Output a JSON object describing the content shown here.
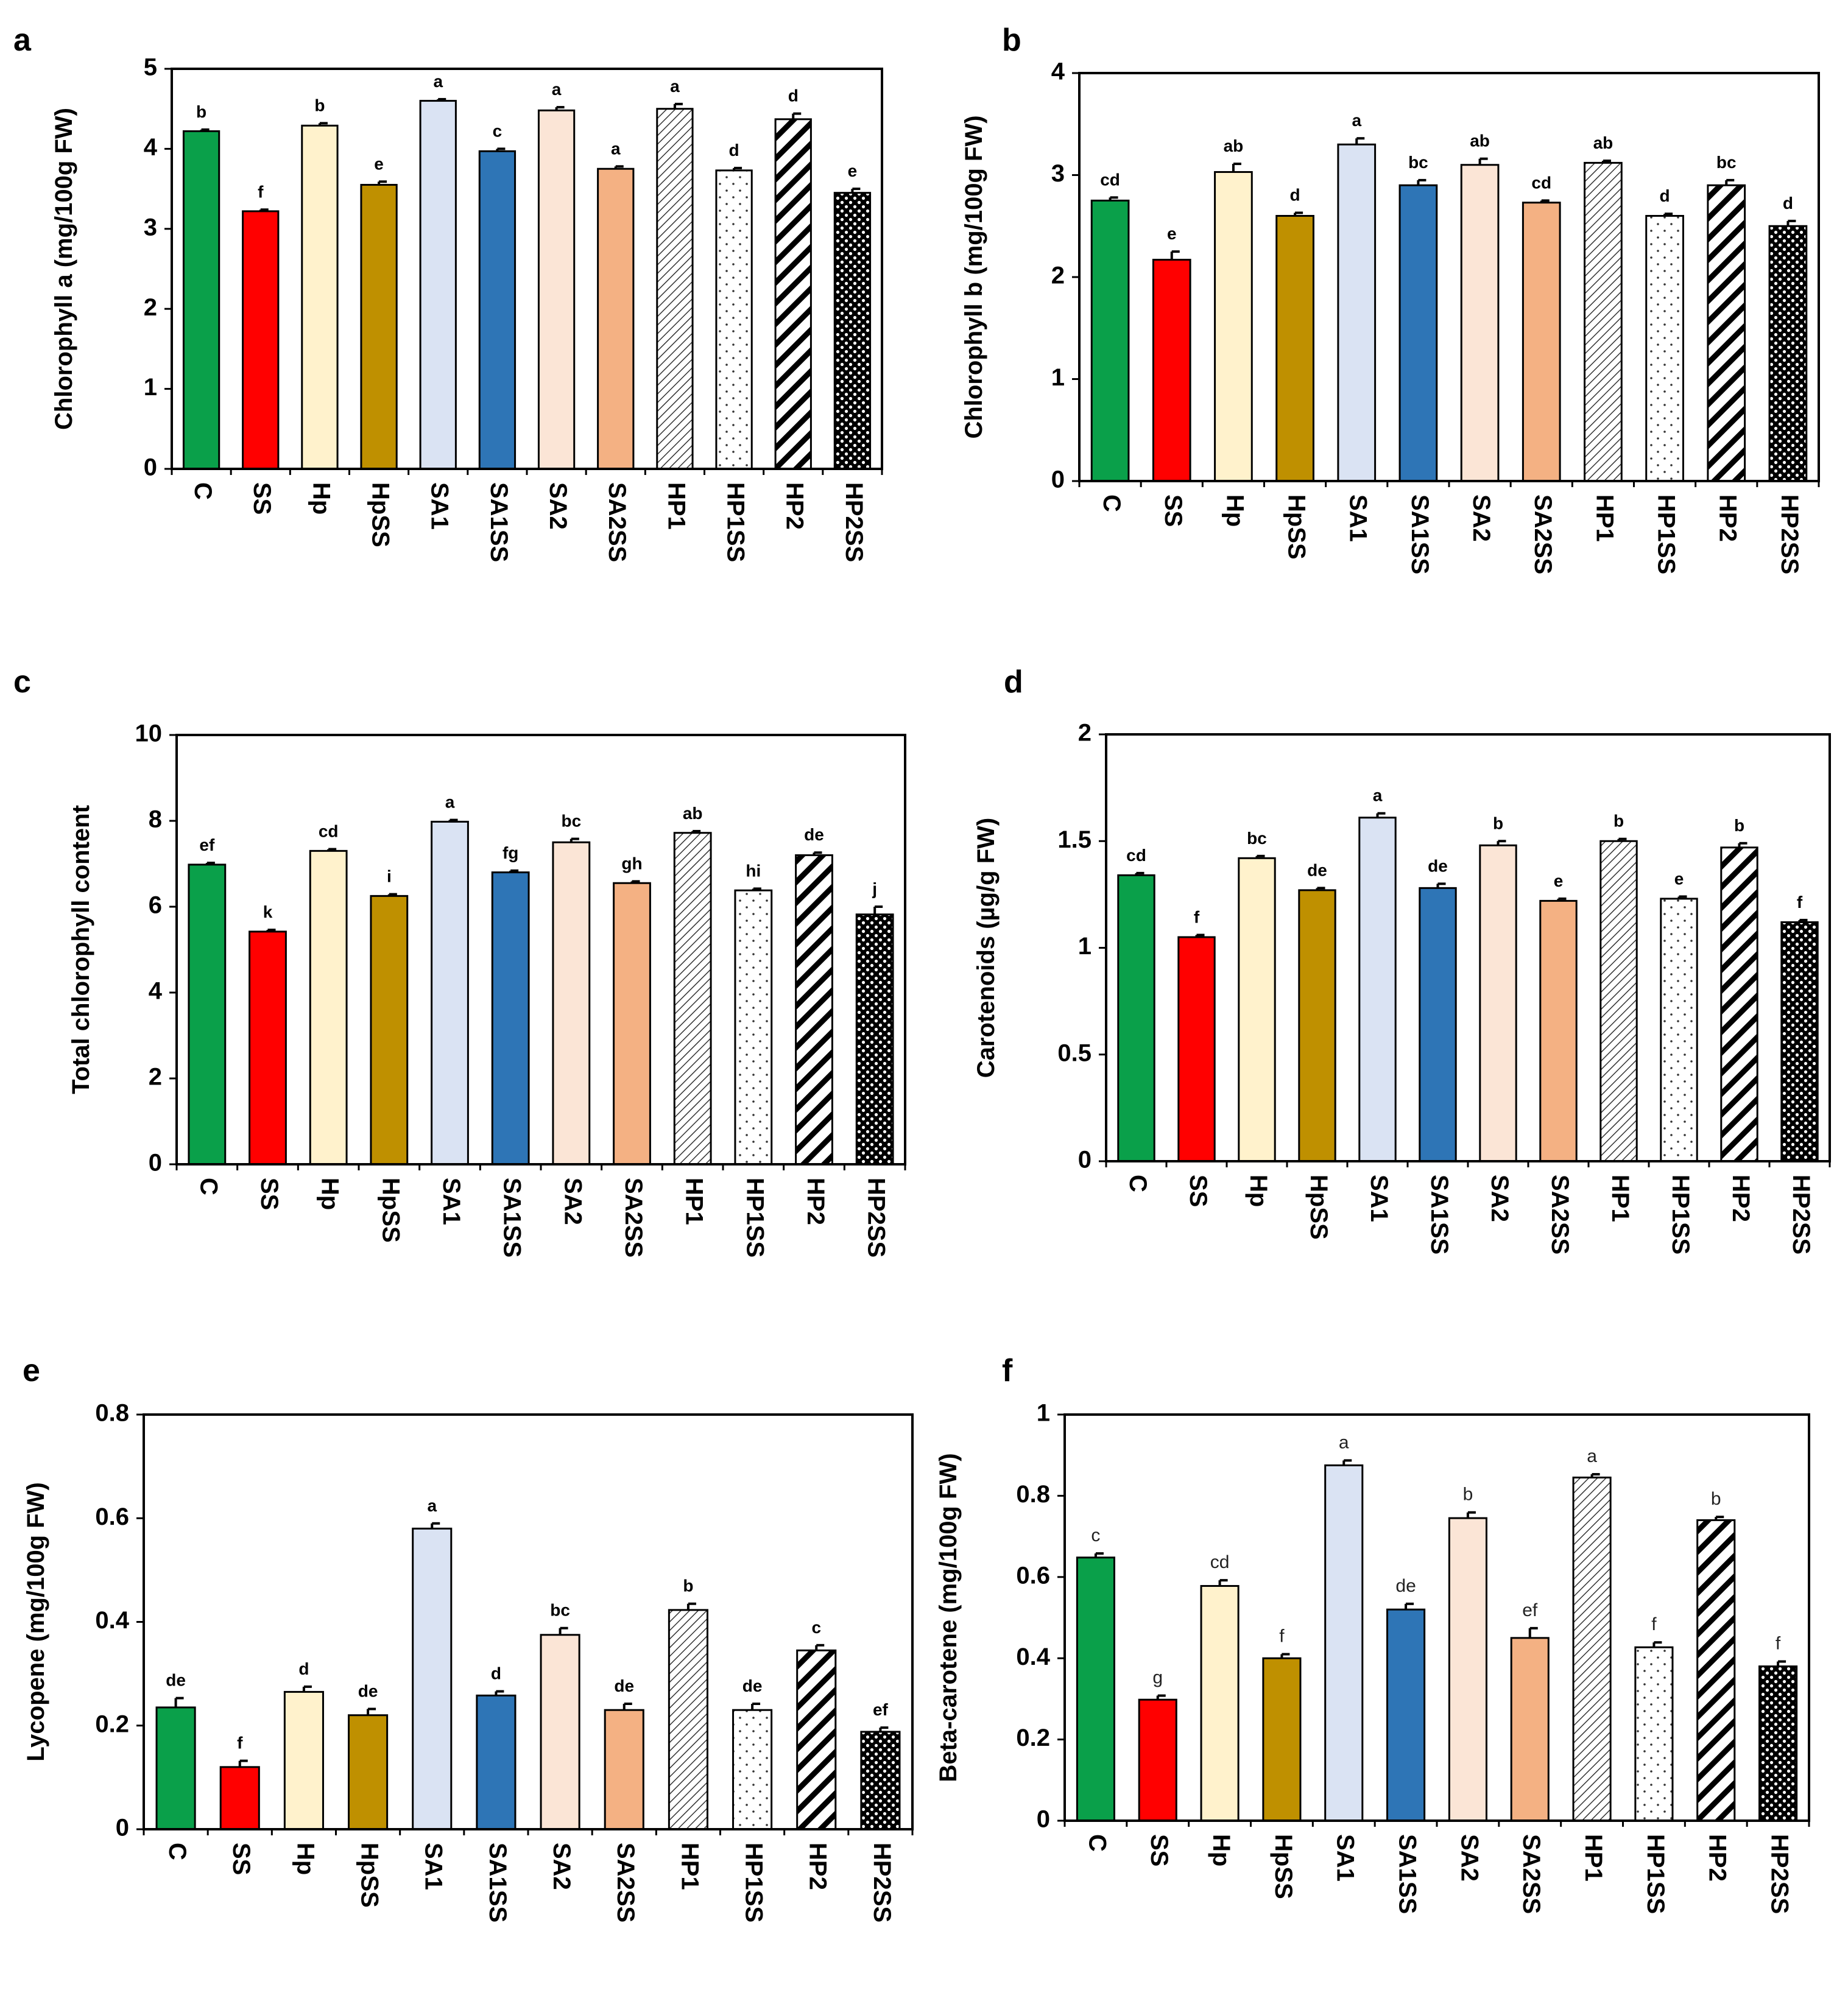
{
  "figure": {
    "categories": [
      "C",
      "SS",
      "Hp",
      "HpSS",
      "SA1",
      "SA1SS",
      "SA2",
      "SA2SS",
      "HP1",
      "HP1SS",
      "HP2",
      "HP2SS"
    ],
    "colors": {
      "C": "#0aa04a",
      "SS": "#ff0000",
      "Hp": "#fff2cc",
      "HpSS": "#bf9000",
      "SA1": "#dae3f3",
      "SA1SS": "#2e75b6",
      "SA2": "#fbe5d6",
      "SA2SS": "#f4b183"
    },
    "pattern_fills": {
      "HP1": "light-diagonal-hatch",
      "HP1SS": "sparse-dots",
      "HP2": "wide-diagonal-hatch",
      "HP2SS": "dense-dots"
    }
  },
  "chart_data": [
    {
      "panel": "a",
      "type": "bar",
      "ylabel": "Chlorophyll a (mg/100g FW)",
      "ylim": [
        0,
        5
      ],
      "yticks": [
        "0",
        "1",
        "2",
        "3",
        "4",
        "5"
      ],
      "tick_values": [
        0,
        1,
        2,
        3,
        4,
        5
      ],
      "values": [
        4.22,
        3.22,
        4.29,
        3.55,
        4.6,
        3.97,
        4.48,
        3.75,
        4.5,
        3.73,
        4.37,
        3.45
      ],
      "errors": [
        0.02,
        0.02,
        0.03,
        0.04,
        0.02,
        0.03,
        0.04,
        0.03,
        0.06,
        0.03,
        0.07,
        0.05
      ],
      "letters": [
        "b",
        "f",
        "b",
        "e",
        "a",
        "c",
        "a",
        "a",
        "a",
        "d",
        "d",
        "e"
      ]
    },
    {
      "panel": "b",
      "type": "bar",
      "ylabel": "Chlorophyll b (mg/100g FW)",
      "ylim": [
        0,
        4
      ],
      "yticks": [
        "0",
        "1",
        "2",
        "3",
        "4"
      ],
      "tick_values": [
        0,
        1,
        2,
        3,
        4
      ],
      "values": [
        2.75,
        2.17,
        3.03,
        2.6,
        3.3,
        2.9,
        3.1,
        2.73,
        3.12,
        2.6,
        2.9,
        2.5
      ],
      "errors": [
        0.03,
        0.08,
        0.08,
        0.03,
        0.06,
        0.05,
        0.06,
        0.02,
        0.02,
        0.02,
        0.05,
        0.05
      ],
      "letters": [
        "cd",
        "e",
        "ab",
        "d",
        "a",
        "bc",
        "ab",
        "cd",
        "ab",
        "d",
        "bc",
        "d"
      ]
    },
    {
      "panel": "c",
      "type": "bar",
      "ylabel": "Total chlorophyll content",
      "ylim": [
        0,
        10
      ],
      "yticks": [
        "0",
        "2",
        "4",
        "6",
        "8",
        "10"
      ],
      "tick_values": [
        0,
        2,
        4,
        6,
        8,
        10
      ],
      "values": [
        6.98,
        5.42,
        7.3,
        6.25,
        7.98,
        6.8,
        7.5,
        6.55,
        7.72,
        6.38,
        7.2,
        5.82
      ],
      "errors": [
        0.04,
        0.04,
        0.04,
        0.04,
        0.04,
        0.04,
        0.08,
        0.04,
        0.04,
        0.04,
        0.06,
        0.18
      ],
      "letters": [
        "ef",
        "k",
        "cd",
        "i",
        "a",
        "fg",
        "bc",
        "gh",
        "ab",
        "hi",
        "de",
        "j"
      ]
    },
    {
      "panel": "d",
      "type": "bar",
      "ylabel": "Carotenoids (µg/g FW)",
      "ylim": [
        0,
        2
      ],
      "yticks": [
        "0",
        "0.5",
        "1",
        "1.5",
        "2"
      ],
      "tick_values": [
        0,
        0.5,
        1,
        1.5,
        2
      ],
      "values": [
        1.34,
        1.05,
        1.42,
        1.27,
        1.61,
        1.28,
        1.48,
        1.22,
        1.5,
        1.23,
        1.47,
        1.12
      ],
      "errors": [
        0.01,
        0.01,
        0.01,
        0.01,
        0.02,
        0.02,
        0.02,
        0.01,
        0.01,
        0.01,
        0.02,
        0.01
      ],
      "letters": [
        "cd",
        "f",
        "bc",
        "de",
        "a",
        "de",
        "b",
        "e",
        "b",
        "e",
        "b",
        "f"
      ]
    },
    {
      "panel": "e",
      "type": "bar",
      "ylabel": "Lycopene (mg/100g FW)",
      "ylim": [
        0,
        0.8
      ],
      "yticks": [
        "0",
        "0.2",
        "0.4",
        "0.6",
        "0.8"
      ],
      "tick_values": [
        0,
        0.2,
        0.4,
        0.6,
        0.8
      ],
      "values": [
        0.235,
        0.12,
        0.265,
        0.22,
        0.58,
        0.258,
        0.375,
        0.23,
        0.423,
        0.23,
        0.345,
        0.188
      ],
      "errors": [
        0.018,
        0.012,
        0.01,
        0.012,
        0.01,
        0.008,
        0.013,
        0.012,
        0.012,
        0.012,
        0.01,
        0.008
      ],
      "letters": [
        "de",
        "f",
        "d",
        "de",
        "a",
        "d",
        "bc",
        "de",
        "b",
        "de",
        "c",
        "ef"
      ]
    },
    {
      "panel": "f",
      "type": "bar",
      "ylabel": "Beta-carotene (mg/100g FW)",
      "ylim": [
        0,
        1
      ],
      "yticks": [
        "0",
        "0.2",
        "0.4",
        "0.6",
        "0.8",
        "1"
      ],
      "tick_values": [
        0,
        0.2,
        0.4,
        0.6,
        0.8,
        1
      ],
      "values": [
        0.648,
        0.298,
        0.578,
        0.4,
        0.875,
        0.52,
        0.745,
        0.45,
        0.845,
        0.427,
        0.74,
        0.38
      ],
      "errors": [
        0.01,
        0.01,
        0.014,
        0.01,
        0.012,
        0.014,
        0.014,
        0.024,
        0.008,
        0.012,
        0.008,
        0.012
      ],
      "letters": [
        "c",
        "g",
        "cd",
        "f",
        "a",
        "de",
        "b",
        "ef",
        "a",
        "f",
        "b",
        "f"
      ]
    }
  ]
}
